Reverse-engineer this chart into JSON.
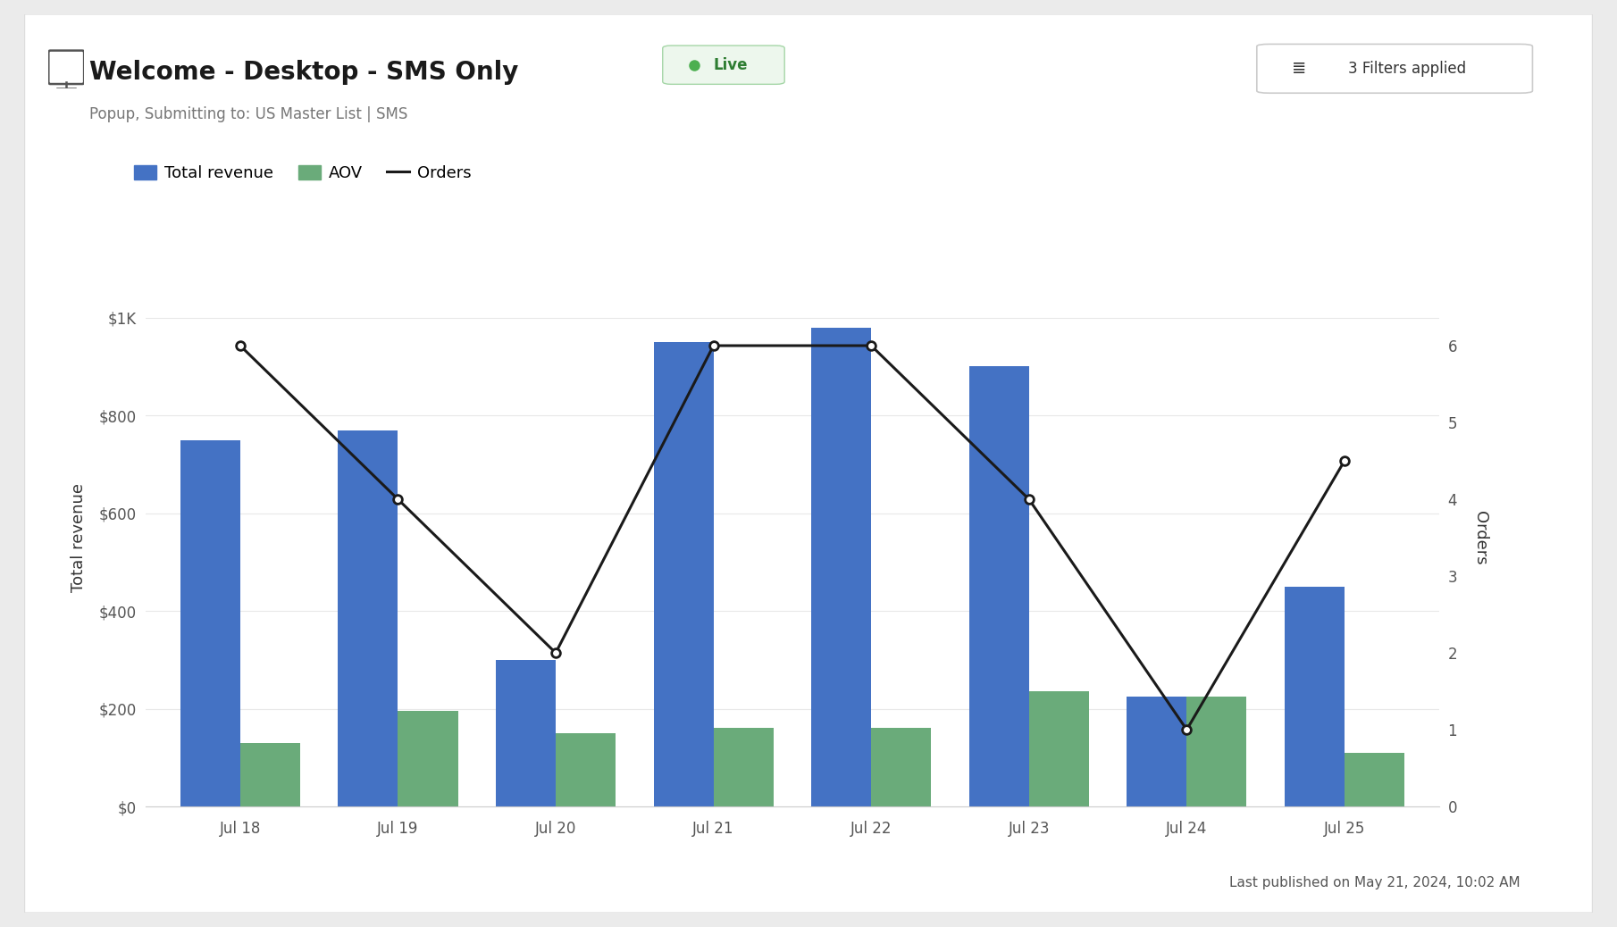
{
  "title": "Welcome - Desktop - SMS Only",
  "subtitle": "Popup, Submitting to: US Master List | SMS",
  "live_label": "Live",
  "filters_label": "3 Filters applied",
  "footer_label": "Last published on May 21, 2024, 10:02 AM",
  "dates": [
    "Jul 18",
    "Jul 19",
    "Jul 20",
    "Jul 21",
    "Jul 22",
    "Jul 23",
    "Jul 24",
    "Jul 25"
  ],
  "total_revenue": [
    750,
    770,
    300,
    950,
    980,
    900,
    225,
    450
  ],
  "aov": [
    130,
    195,
    150,
    160,
    160,
    235,
    225,
    110
  ],
  "orders": [
    6,
    4,
    2,
    6,
    6,
    4,
    1,
    4.5
  ],
  "revenue_color": "#4472c4",
  "aov_color": "#6aab7a",
  "orders_color": "#1a1a1a",
  "ylim_left": [
    0,
    1100
  ],
  "ylim_right": [
    0,
    7
  ],
  "yticks_left": [
    0,
    200,
    400,
    600,
    800,
    1000
  ],
  "ytick_labels_left": [
    "$0",
    "$200",
    "$400",
    "$600",
    "$800",
    "$1K"
  ],
  "yticks_right": [
    0,
    1,
    2,
    3,
    4,
    5,
    6
  ],
  "legend_items": [
    "Total revenue",
    "AOV",
    "Orders"
  ],
  "ylabel_left": "Total revenue",
  "ylabel_right": "Orders"
}
